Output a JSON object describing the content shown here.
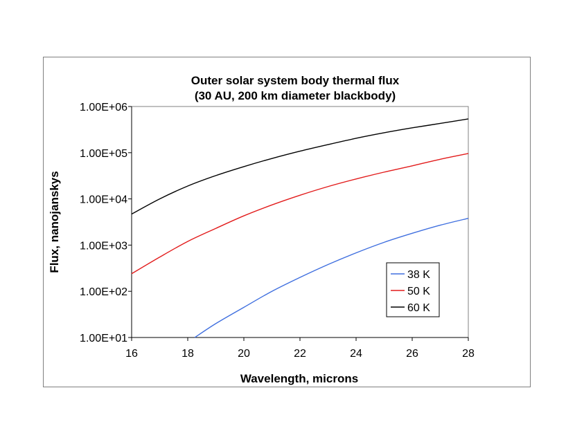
{
  "chart_data": {
    "type": "line",
    "title": "Outer solar system body thermal flux",
    "subtitle": "(30 AU, 200 km diameter blackbody)",
    "xlabel": "Wavelength, microns",
    "ylabel": "Flux, nanojanskys",
    "xlim": [
      16,
      28
    ],
    "ylim": [
      10,
      1000000
    ],
    "yscale": "log",
    "x_ticks": [
      "16",
      "18",
      "20",
      "22",
      "24",
      "26",
      "28"
    ],
    "y_ticks": [
      "1.00E+01",
      "1.00E+02",
      "1.00E+03",
      "1.00E+04",
      "1.00E+05",
      "1.00E+06"
    ],
    "grid": false,
    "legend": "right",
    "series": [
      {
        "name": "38 K",
        "color": "#3f6fdf",
        "x": [
          18.25,
          19,
          20,
          21,
          22,
          23,
          24,
          25,
          26,
          27,
          28
        ],
        "y": [
          10,
          20,
          45,
          100,
          200,
          380,
          680,
          1150,
          1800,
          2700,
          3800
        ]
      },
      {
        "name": "50 K",
        "color": "#e21b1b",
        "x": [
          16,
          17,
          18,
          19,
          20,
          21,
          22,
          23,
          24,
          25,
          26,
          27,
          28
        ],
        "y": [
          240,
          550,
          1200,
          2300,
          4300,
          7400,
          12000,
          18500,
          27000,
          38000,
          52000,
          72000,
          96000
        ]
      },
      {
        "name": "60 K",
        "color": "#000000",
        "x": [
          16,
          17,
          18,
          19,
          20,
          21,
          22,
          23,
          24,
          25,
          26,
          27,
          28
        ],
        "y": [
          4700,
          10000,
          19000,
          32000,
          50000,
          75000,
          108000,
          150000,
          205000,
          270000,
          345000,
          430000,
          540000
        ]
      }
    ]
  }
}
